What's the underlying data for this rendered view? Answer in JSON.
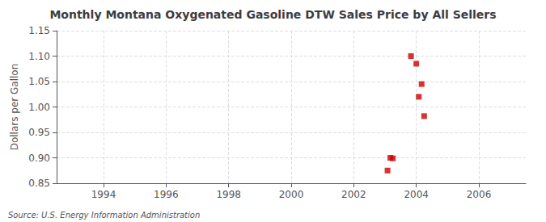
{
  "chart_data": {
    "type": "scatter",
    "title": "Monthly Montana Oxygenated Gasoline DTW Sales Price by All Sellers",
    "ylabel": "Dollars per Gallon",
    "annotations": [
      "Source: U.S. Energy Information Administration"
    ],
    "x": [
      2003.08,
      2003.17,
      2003.25,
      2003.83,
      2004.0,
      2004.08,
      2004.17,
      2004.25
    ],
    "values": [
      0.875,
      0.9,
      0.899,
      1.1,
      1.085,
      1.02,
      1.045,
      0.982
    ],
    "color": "#cc0000",
    "marker": "square",
    "xlim": [
      1992.5,
      2007.5
    ],
    "xticks": [
      1994,
      1996,
      1998,
      2000,
      2002,
      2004,
      2006
    ],
    "ylim": [
      0.85,
      1.15
    ],
    "yticks": [
      0.85,
      {
        "value": 0.9,
        "label": "0.90"
      },
      0.95,
      {
        "value": 1.0,
        "label": "1.00"
      },
      1.05,
      {
        "value": 1.1,
        "label": "1.10"
      },
      1.15
    ],
    "grid": true
  }
}
